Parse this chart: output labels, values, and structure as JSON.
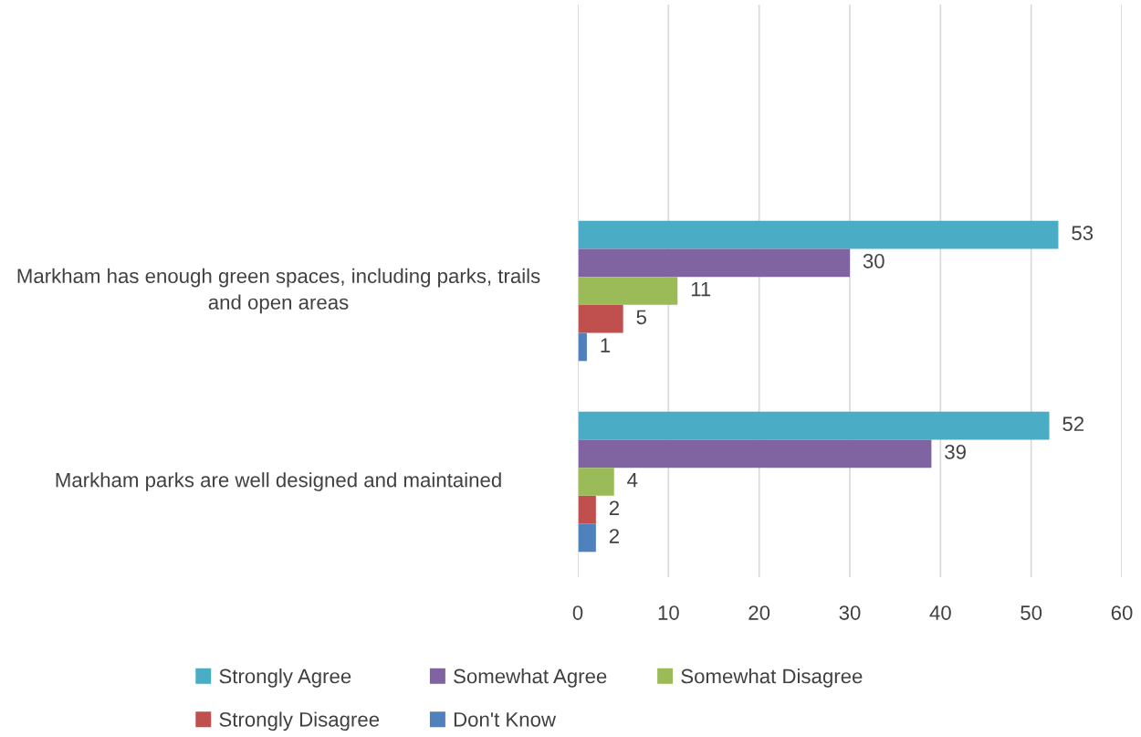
{
  "chart_data": {
    "type": "bar",
    "orientation": "horizontal",
    "categories": [
      null,
      "Markham has enough green spaces, including parks, trails and open areas",
      "Markham parks are well designed and maintained"
    ],
    "series": [
      {
        "name": "Strongly Agree",
        "color": "#4bacc6",
        "values": [
          null,
          53,
          52
        ]
      },
      {
        "name": "Somewhat Agree",
        "color": "#8064a2",
        "values": [
          null,
          30,
          39
        ]
      },
      {
        "name": "Somewhat Disagree",
        "color": "#9bbb59",
        "values": [
          null,
          11,
          4
        ]
      },
      {
        "name": "Strongly Disagree",
        "color": "#c0504d",
        "values": [
          null,
          5,
          2
        ]
      },
      {
        "name": "Don't Know",
        "color": "#4f81bd",
        "values": [
          null,
          1,
          2
        ]
      }
    ],
    "xlim": [
      0,
      60
    ],
    "xticks": [
      0,
      10,
      20,
      30,
      40,
      50,
      60
    ],
    "grid": "x",
    "legend": "bottom",
    "data_labels": true
  }
}
